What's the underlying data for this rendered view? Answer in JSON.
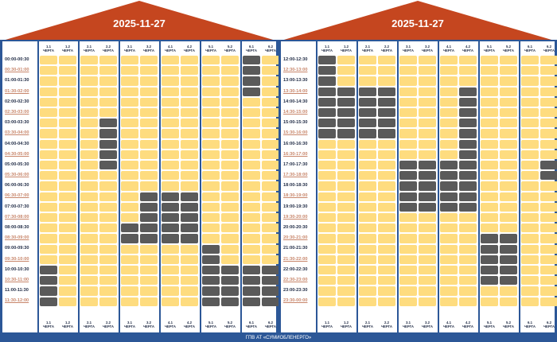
{
  "footer": "ГПВ АТ «СУМИОБЛЕНЕРГО»",
  "colors": {
    "roof": "#c5461f",
    "frame": "#2c5797",
    "on": "#fedc7f",
    "off": "#5a5a5a"
  },
  "queues": [
    "1.1",
    "1.2",
    "2.1",
    "2.2",
    "3.1",
    "3.2",
    "4.1",
    "4.2",
    "5.1",
    "5.2",
    "6.1",
    "6.2"
  ],
  "queue_word": "ЧЕРГА",
  "panels": [
    {
      "date": "2025-11-27",
      "times": [
        "00:00-00:30",
        "00:30-01:00",
        "01:00-01:30",
        "01:30-02:00",
        "02:00-02:30",
        "02:30-03:00",
        "03:00-03:30",
        "03:30-04:00",
        "04:00-04:30",
        "04:30-05:00",
        "05:00-05:30",
        "05:30-06:00",
        "06:00-06:30",
        "06:30-07:00",
        "07:00-07:30",
        "07:30-08:00",
        "08:00-08:30",
        "08:30-09:00",
        "09:00-09:30",
        "09:30-10:00",
        "10:00-10:30",
        "10:30-11:00",
        "11:00-11:30",
        "11:30-12:00"
      ],
      "outages": {
        "1.1": [
          20,
          21,
          22,
          23
        ],
        "1.2": [],
        "2.1": [],
        "2.2": [
          6,
          7,
          8,
          9,
          10
        ],
        "3.1": [
          16,
          17
        ],
        "3.2": [
          13,
          14,
          15,
          16,
          17
        ],
        "4.1": [
          13,
          14,
          15,
          16,
          17
        ],
        "4.2": [
          13,
          14,
          15,
          16,
          17
        ],
        "5.1": [
          18,
          19,
          20,
          21,
          22,
          23
        ],
        "5.2": [
          20,
          21,
          22,
          23
        ],
        "6.1": [
          0,
          1,
          2,
          3,
          20,
          21,
          22,
          23
        ],
        "6.2": [
          20,
          21,
          22,
          23
        ]
      }
    },
    {
      "date": "2025-11-27",
      "times": [
        "12:00-12:30",
        "12:30-13:00",
        "13:00-13:30",
        "13:30-14:00",
        "14:00-14:30",
        "14:30-15:00",
        "15:00-15:30",
        "15:30-16:00",
        "16:00-16:30",
        "16:30-17:00",
        "17:00-17:30",
        "17:30-18:00",
        "18:00-18:30",
        "18:30-19:00",
        "19:00-19:30",
        "19:30-20:00",
        "20:00-20:30",
        "20:30-21:00",
        "21:00-21:30",
        "21:30-22:00",
        "22:00-22:30",
        "22:30-23:00",
        "23:00-23:30",
        "23:30-00:00"
      ],
      "outages": {
        "1.1": [
          0,
          1,
          2,
          3,
          4,
          5,
          6,
          7
        ],
        "1.2": [
          3,
          4,
          5,
          6,
          7
        ],
        "2.1": [
          3,
          4,
          5,
          6,
          7
        ],
        "2.2": [
          3,
          4,
          5,
          6,
          7
        ],
        "3.1": [
          10,
          11,
          12,
          13,
          14
        ],
        "3.2": [
          10,
          11,
          12,
          13,
          14
        ],
        "4.1": [
          10,
          11,
          12,
          13,
          14
        ],
        "4.2": [
          3,
          4,
          5,
          6,
          7,
          8,
          9,
          10,
          11,
          12,
          13,
          14
        ],
        "5.1": [
          17,
          18,
          19,
          20,
          21
        ],
        "5.2": [
          17,
          18,
          19,
          20,
          21
        ],
        "6.1": [],
        "6.2": [
          10,
          11
        ]
      }
    }
  ]
}
